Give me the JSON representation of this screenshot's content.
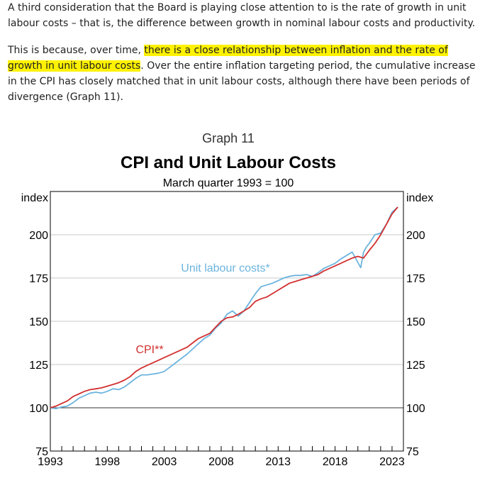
{
  "article": {
    "paragraph1": "A third consideration that the Board is playing close attention to is the rate of growth in unit labour costs – that is, the difference between growth in nominal labour costs and productivity.",
    "paragraph2_before": "This is because, over time, ",
    "paragraph2_highlight": "there is a close relationship between inflation and the rate of growth in unit labour costs",
    "paragraph2_after": ". Over the entire inflation targeting period, the cumulative increase in the CPI has closely matched that in unit labour costs, although there have been periods of divergence (Graph 11).",
    "highlight_color": "#fff200"
  },
  "chart_data": {
    "type": "line",
    "graph_number": "Graph 11",
    "title": "CPI and Unit Labour Costs",
    "subtitle": "March quarter 1993 = 100",
    "ylabel_left": "index",
    "ylabel_right": "index",
    "ylim": [
      75,
      225
    ],
    "yticks": [
      75,
      100,
      125,
      150,
      175,
      200
    ],
    "xlim": [
      1993,
      2024
    ],
    "xticks": [
      1993,
      1998,
      2003,
      2008,
      2013,
      2018,
      2023
    ],
    "grid": true,
    "series": [
      {
        "name": "Unit labour costs*",
        "color": "#6cb4de",
        "x": [
          1993,
          1993.5,
          1994,
          1994.5,
          1995,
          1995.5,
          1996,
          1996.5,
          1997,
          1997.5,
          1998,
          1998.5,
          1999,
          1999.5,
          2000,
          2000.5,
          2001,
          2001.5,
          2002,
          2002.5,
          2003,
          2003.5,
          2004,
          2004.5,
          2005,
          2005.5,
          2006,
          2006.5,
          2007,
          2007.5,
          2008,
          2008.5,
          2009,
          2009.5,
          2010,
          2010.5,
          2011,
          2011.5,
          2012,
          2012.5,
          2013,
          2013.5,
          2014,
          2014.5,
          2015,
          2015.5,
          2016,
          2016.5,
          2017,
          2017.5,
          2018,
          2018.5,
          2019,
          2019.5,
          2020,
          2020.25,
          2020.5,
          2020.75,
          2021,
          2021.5,
          2022,
          2022.5,
          2023,
          2023.5
        ],
        "values": [
          100,
          99.5,
          100.5,
          101,
          103,
          105.5,
          107,
          108.5,
          109,
          108.5,
          109.5,
          111,
          110.5,
          112,
          114.5,
          117,
          119,
          119,
          119.5,
          120,
          121,
          123.5,
          126,
          128.5,
          131,
          134,
          137,
          140,
          142,
          146,
          149,
          154,
          156,
          153,
          156,
          161,
          166,
          170,
          171,
          172,
          173.5,
          175,
          176,
          176.5,
          176.5,
          177,
          176,
          178,
          180.5,
          182,
          183.5,
          186,
          188,
          190,
          184,
          181,
          190,
          193,
          195,
          200,
          201,
          206,
          213,
          216
        ]
      },
      {
        "name": "CPI**",
        "color": "#d32f2f",
        "x": [
          1993,
          1993.5,
          1994,
          1994.5,
          1995,
          1995.5,
          1996,
          1996.5,
          1997,
          1997.5,
          1998,
          1998.5,
          1999,
          1999.5,
          2000,
          2000.5,
          2001,
          2001.5,
          2002,
          2002.5,
          2003,
          2003.5,
          2004,
          2004.5,
          2005,
          2005.5,
          2006,
          2006.5,
          2007,
          2007.5,
          2008,
          2008.5,
          2009,
          2009.5,
          2010,
          2010.5,
          2011,
          2011.5,
          2012,
          2012.5,
          2013,
          2013.5,
          2014,
          2014.5,
          2015,
          2015.5,
          2016,
          2016.5,
          2017,
          2017.5,
          2018,
          2018.5,
          2019,
          2019.5,
          2020,
          2020.5,
          2021,
          2021.5,
          2022,
          2022.5,
          2023,
          2023.5
        ],
        "values": [
          100,
          101,
          102.5,
          104,
          106.5,
          108,
          109.5,
          110.5,
          111,
          111.5,
          112.5,
          113.5,
          114.5,
          116,
          118,
          121,
          123,
          124.5,
          126,
          127.5,
          129,
          130.5,
          132,
          133.5,
          135,
          137.5,
          140,
          141.5,
          143,
          146.5,
          150,
          152,
          152.5,
          154,
          156,
          158,
          161.5,
          163,
          164,
          166,
          168,
          170,
          172,
          173,
          174,
          175,
          176,
          177,
          179,
          180.5,
          182,
          183.5,
          185,
          186.5,
          187.5,
          186.5,
          191,
          195,
          200,
          206,
          212,
          216
        ]
      }
    ]
  }
}
